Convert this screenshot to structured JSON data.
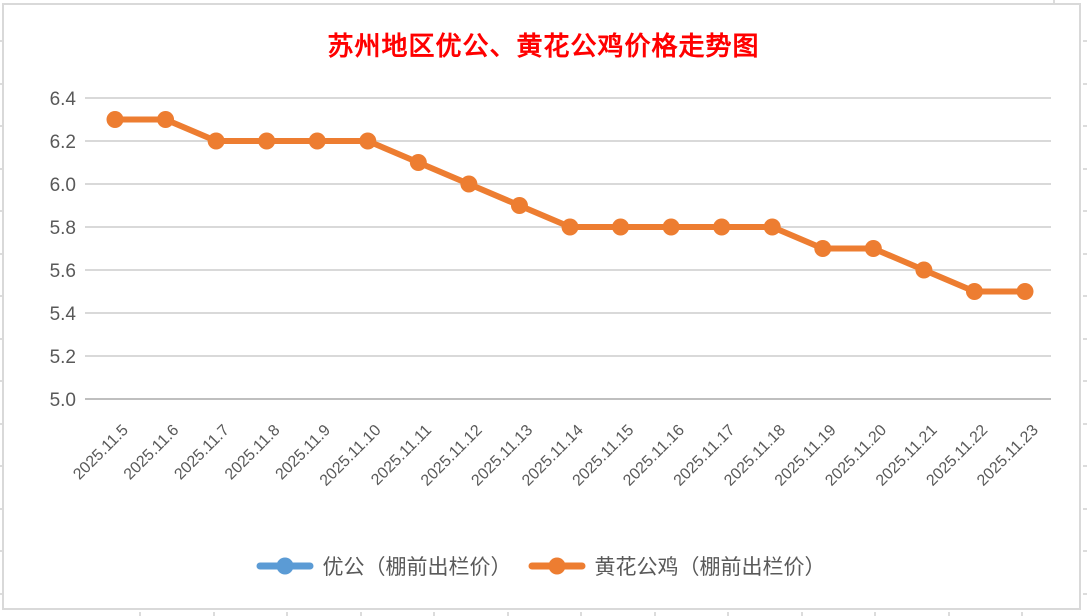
{
  "chart_data": {
    "type": "line",
    "title": "苏州地区优公、黄花公鸡价格走势图",
    "title_color": "#FF0000",
    "categories": [
      "2025.11.5",
      "2025.11.6",
      "2025.11.7",
      "2025.11.8",
      "2025.11.9",
      "2025.11.10",
      "2025.11.11",
      "2025.11.12",
      "2025.11.13",
      "2025.11.14",
      "2025.11.15",
      "2025.11.16",
      "2025.11.17",
      "2025.11.18",
      "2025.11.19",
      "2025.11.20",
      "2025.11.21",
      "2025.11.22",
      "2025.11.23"
    ],
    "series": [
      {
        "name": "优公（棚前出栏价）",
        "color": "#5B9BD5",
        "visible_in_plot": false,
        "values": []
      },
      {
        "name": "黄花公鸡（棚前出栏价）",
        "color": "#ED7D31",
        "visible_in_plot": true,
        "values": [
          6.3,
          6.3,
          6.2,
          6.2,
          6.2,
          6.2,
          6.1,
          6.0,
          5.9,
          5.8,
          5.8,
          5.8,
          5.8,
          5.8,
          5.7,
          5.7,
          5.6,
          5.5,
          5.5
        ]
      }
    ],
    "xlabel": "",
    "ylabel": "",
    "ylim": [
      5.0,
      6.4
    ],
    "yticks": [
      5.0,
      5.2,
      5.4,
      5.6,
      5.8,
      6.0,
      6.2,
      6.4
    ],
    "ytick_labels": [
      "5.0",
      "5.2",
      "5.4",
      "5.6",
      "5.8",
      "6.0",
      "6.2",
      "6.4"
    ],
    "grid": true,
    "grid_color": "#D9D9D9",
    "baseline_color": "#BFBFBF",
    "axis_text_color": "#595959",
    "legend_position": "bottom",
    "x_labels_rotation_deg": 45
  }
}
